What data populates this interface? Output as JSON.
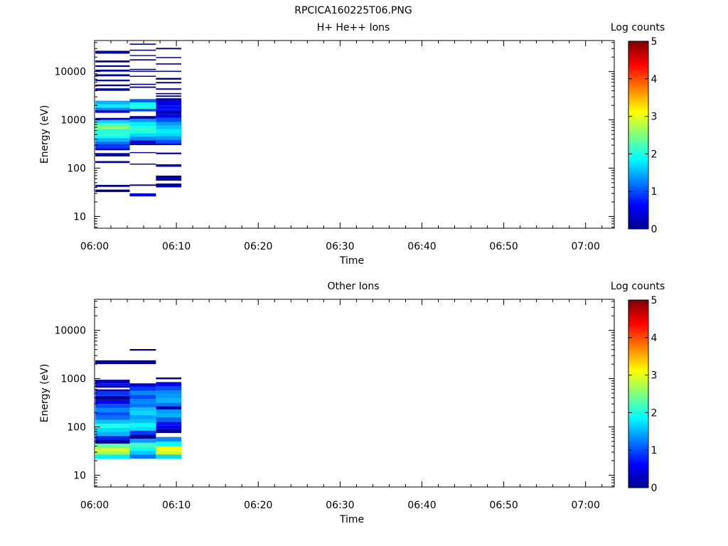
{
  "page_title": "RPCICA160225T06.PNG",
  "colors": {
    "background": "#ffffff",
    "axis": "#000000"
  },
  "chart_data": [
    {
      "type": "heatmap",
      "title": "H+ He++ Ions",
      "xlabel": "Time",
      "ylabel": "Energy (eV)",
      "x_tick_labels": [
        "06:00",
        "06:10",
        "06:20",
        "06:30",
        "06:40",
        "06:50",
        "07:00"
      ],
      "y_tick_labels": [
        "10",
        "100",
        "1000",
        "10000"
      ],
      "y_scale": "log",
      "ylim": [
        5.7,
        44000
      ],
      "xlim_minutes": [
        0,
        63.5
      ],
      "colorbar": {
        "label": "Log counts",
        "ticks": [
          "0",
          "1",
          "2",
          "3",
          "4",
          "5"
        ],
        "range": [
          0,
          5
        ]
      },
      "columns": [
        {
          "t_start_min": 0.1,
          "t_end_min": 4.3,
          "cells": [
            [
              32,
              36,
              0.1
            ],
            [
              41,
              45,
              0.1
            ],
            [
              128,
              140,
              0.2
            ],
            [
              175,
              205,
              0.3
            ],
            [
              235,
              260,
              0.2
            ],
            [
              260,
              320,
              0.9
            ],
            [
              320,
              360,
              1.2
            ],
            [
              360,
              420,
              1.5
            ],
            [
              420,
              480,
              1.9
            ],
            [
              480,
              560,
              2.1
            ],
            [
              560,
              640,
              2.0
            ],
            [
              640,
              740,
              2.6
            ],
            [
              740,
              850,
              2.3
            ],
            [
              850,
              1000,
              1.7
            ],
            [
              1000,
              1100,
              0.4
            ],
            [
              1400,
              1600,
              0.3
            ],
            [
              1600,
              1800,
              1.2
            ],
            [
              1800,
              2100,
              1.8
            ],
            [
              2100,
              2500,
              1.5
            ],
            [
              4000,
              4500,
              0.2
            ],
            [
              5000,
              5400,
              0.2
            ],
            [
              6300,
              6800,
              0.2
            ],
            [
              8000,
              8800,
              0.2
            ],
            [
              10000,
              11000,
              0.2
            ],
            [
              12500,
              13500,
              0.2
            ],
            [
              15500,
              17000,
              0.2
            ],
            [
              23500,
              27000,
              0.2
            ]
          ]
        },
        {
          "t_start_min": 4.3,
          "t_end_min": 7.5,
          "cells": [
            [
              26,
              30,
              0.6
            ],
            [
              43,
              46,
              0.1
            ],
            [
              118,
              124,
              0.1
            ],
            [
              205,
              215,
              0.1
            ],
            [
              300,
              330,
              0.1
            ],
            [
              330,
              380,
              0.4
            ],
            [
              380,
              450,
              1.3
            ],
            [
              450,
              530,
              1.7
            ],
            [
              530,
              620,
              2.0
            ],
            [
              620,
              750,
              2.1
            ],
            [
              750,
              900,
              1.8
            ],
            [
              900,
              1050,
              1.4
            ],
            [
              1050,
              1200,
              0.3
            ],
            [
              1500,
              1700,
              0.9
            ],
            [
              1700,
              2000,
              2.0
            ],
            [
              2000,
              2300,
              1.9
            ],
            [
              2300,
              2700,
              1.1
            ],
            [
              4600,
              4900,
              0.1
            ],
            [
              5300,
              5600,
              0.1
            ],
            [
              7800,
              8200,
              0.1
            ],
            [
              9900,
              10400,
              0.2
            ],
            [
              10800,
              11400,
              0.2
            ],
            [
              17000,
              18000,
              0.1
            ],
            [
              21000,
              22000,
              0.1
            ],
            [
              27000,
              28500,
              0.1
            ],
            [
              36000,
              38000,
              0.1
            ]
          ]
        },
        {
          "t_start_min": 7.5,
          "t_end_min": 10.6,
          "cells": [
            [
              40,
              48,
              0.2
            ],
            [
              55,
              60,
              0.1
            ],
            [
              60,
              70,
              0.2
            ],
            [
              107,
              120,
              0.2
            ],
            [
              195,
              210,
              0.2
            ],
            [
              300,
              330,
              0.4
            ],
            [
              330,
              390,
              1.0
            ],
            [
              390,
              460,
              1.4
            ],
            [
              460,
              540,
              1.7
            ],
            [
              540,
              640,
              1.8
            ],
            [
              640,
              760,
              1.6
            ],
            [
              760,
              900,
              1.4
            ],
            [
              900,
              1100,
              1.0
            ],
            [
              1100,
              1300,
              0.6
            ],
            [
              1300,
              1600,
              0.3
            ],
            [
              1600,
              2000,
              0.7
            ],
            [
              2000,
              2500,
              0.5
            ],
            [
              2500,
              2800,
              0.2
            ],
            [
              3000,
              3200,
              0.1
            ],
            [
              3400,
              3600,
              0.1
            ],
            [
              4200,
              4500,
              0.1
            ],
            [
              5700,
              6100,
              0.1
            ],
            [
              6800,
              7400,
              0.1
            ],
            [
              9900,
              10400,
              0.1
            ],
            [
              14000,
              14800,
              0.1
            ],
            [
              19000,
              20000,
              0.1
            ],
            [
              29000,
              31000,
              0.1
            ]
          ]
        }
      ]
    },
    {
      "type": "heatmap",
      "title": "Other Ions",
      "xlabel": "Time",
      "ylabel": "Energy (eV)",
      "x_tick_labels": [
        "06:00",
        "06:10",
        "06:20",
        "06:30",
        "06:40",
        "06:50",
        "07:00"
      ],
      "y_tick_labels": [
        "10",
        "100",
        "1000",
        "10000"
      ],
      "y_scale": "log",
      "ylim": [
        5.7,
        44000
      ],
      "xlim_minutes": [
        0,
        63.5
      ],
      "colorbar": {
        "label": "Log counts",
        "ticks": [
          "0",
          "1",
          "2",
          "3",
          "4",
          "5"
        ],
        "range": [
          0,
          5
        ]
      },
      "columns": [
        {
          "t_start_min": 0.1,
          "t_end_min": 4.3,
          "cells": [
            [
              22,
              27,
              1.8
            ],
            [
              27,
              31,
              2.6
            ],
            [
              31,
              37,
              2.9
            ],
            [
              37,
              45,
              2.4
            ],
            [
              45,
              55,
              0.2
            ],
            [
              55,
              66,
              0.8
            ],
            [
              66,
              80,
              1.5
            ],
            [
              80,
              96,
              1.7
            ],
            [
              96,
              116,
              2.0
            ],
            [
              116,
              140,
              1.6
            ],
            [
              140,
              170,
              1.2
            ],
            [
              170,
              205,
              1.0
            ],
            [
              205,
              250,
              1.3
            ],
            [
              250,
              300,
              1.0
            ],
            [
              300,
              360,
              0.6
            ],
            [
              360,
              440,
              0.1
            ],
            [
              440,
              540,
              0.9
            ],
            [
              540,
              600,
              0.4
            ],
            [
              650,
              720,
              0.1
            ],
            [
              720,
              800,
              0.7
            ],
            [
              800,
              950,
              0.3
            ],
            [
              2000,
              2400,
              0.2
            ]
          ]
        },
        {
          "t_start_min": 4.3,
          "t_end_min": 7.5,
          "cells": [
            [
              22,
              27,
              1.2
            ],
            [
              27,
              32,
              1.6
            ],
            [
              32,
              38,
              1.9
            ],
            [
              38,
              47,
              2.2
            ],
            [
              47,
              57,
              1.4
            ],
            [
              57,
              70,
              0.1
            ],
            [
              70,
              84,
              0.9
            ],
            [
              84,
              100,
              1.7
            ],
            [
              100,
              120,
              1.9
            ],
            [
              120,
              145,
              1.6
            ],
            [
              145,
              175,
              1.4
            ],
            [
              175,
              210,
              1.7
            ],
            [
              210,
              255,
              1.6
            ],
            [
              255,
              310,
              1.2
            ],
            [
              310,
              380,
              1.3
            ],
            [
              380,
              470,
              1.0
            ],
            [
              470,
              560,
              1.3
            ],
            [
              560,
              680,
              0.9
            ],
            [
              680,
              800,
              0.5
            ],
            [
              2000,
              2400,
              0.2
            ],
            [
              3800,
              4100,
              0.1
            ]
          ]
        },
        {
          "t_start_min": 7.5,
          "t_end_min": 10.6,
          "cells": [
            [
              22,
              27,
              1.7
            ],
            [
              27,
              32,
              2.9
            ],
            [
              32,
              40,
              3.1
            ],
            [
              40,
              50,
              1.9
            ],
            [
              50,
              62,
              1.3
            ],
            [
              75,
              90,
              0.1
            ],
            [
              90,
              108,
              0.5
            ],
            [
              108,
              130,
              0.7
            ],
            [
              130,
              160,
              1.1
            ],
            [
              160,
              190,
              1.5
            ],
            [
              190,
              230,
              1.4
            ],
            [
              230,
              270,
              0.2
            ],
            [
              270,
              320,
              1.2
            ],
            [
              320,
              390,
              1.5
            ],
            [
              390,
              470,
              1.4
            ],
            [
              470,
              570,
              1.3
            ],
            [
              570,
              700,
              1.0
            ],
            [
              700,
              850,
              0.6
            ],
            [
              970,
              1060,
              0.2
            ]
          ]
        }
      ]
    }
  ]
}
